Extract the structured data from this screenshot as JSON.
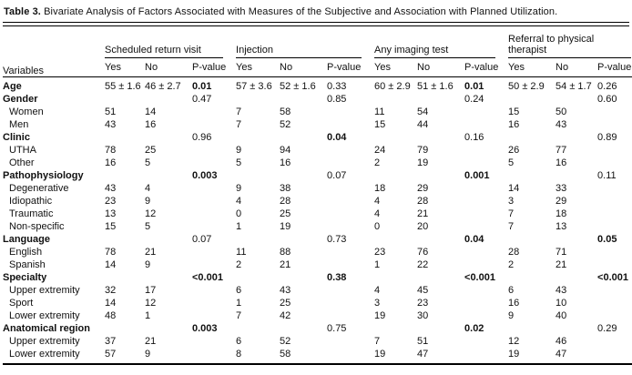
{
  "title": {
    "label": "Table 3.",
    "text": "Bivariate Analysis of Factors Associated with Measures of the Subjective and Association with Planned Utilization."
  },
  "table": {
    "variables_header": "Variables",
    "groups": [
      {
        "label": "Scheduled return visit"
      },
      {
        "label": "Injection"
      },
      {
        "label": "Any imaging test"
      },
      {
        "label": "Referral to physical therapist"
      }
    ],
    "sub_headers": [
      "Yes",
      "No",
      "P-value"
    ],
    "rows": [
      {
        "label": "Age",
        "category": true,
        "cells": [
          "55 ± 1.6",
          "46 ± 2.7",
          "0.01",
          "57 ± 3.6",
          "52 ± 1.6",
          "0.33",
          "60 ± 2.9",
          "51 ± 1.6",
          "0.01",
          "50 ± 2.9",
          "54 ± 1.7",
          "0.26"
        ],
        "bold_cells": [
          2,
          8
        ]
      },
      {
        "label": "Gender",
        "category": true,
        "cells": [
          "",
          "",
          "0.47",
          "",
          "",
          "0.85",
          "",
          "",
          "0.24",
          "",
          "",
          "0.60"
        ],
        "bold_cells": []
      },
      {
        "label": "Women",
        "category": false,
        "cells": [
          "51",
          "14",
          "",
          "7",
          "58",
          "",
          "11",
          "54",
          "",
          "15",
          "50",
          ""
        ],
        "bold_cells": []
      },
      {
        "label": "Men",
        "category": false,
        "cells": [
          "43",
          "16",
          "",
          "7",
          "52",
          "",
          "15",
          "44",
          "",
          "16",
          "43",
          ""
        ],
        "bold_cells": []
      },
      {
        "label": "Clinic",
        "category": true,
        "cells": [
          "",
          "",
          "0.96",
          "",
          "",
          "0.04",
          "",
          "",
          "0.16",
          "",
          "",
          "0.89"
        ],
        "bold_cells": [
          5
        ]
      },
      {
        "label": "UTHA",
        "category": false,
        "cells": [
          "78",
          "25",
          "",
          "9",
          "94",
          "",
          "24",
          "79",
          "",
          "26",
          "77",
          ""
        ],
        "bold_cells": []
      },
      {
        "label": "Other",
        "category": false,
        "cells": [
          "16",
          "5",
          "",
          "5",
          "16",
          "",
          "2",
          "19",
          "",
          "5",
          "16",
          ""
        ],
        "bold_cells": []
      },
      {
        "label": "Pathophysiology",
        "category": true,
        "cells": [
          "",
          "",
          "0.003",
          "",
          "",
          "0.07",
          "",
          "",
          "0.001",
          "",
          "",
          "0.11"
        ],
        "bold_cells": [
          2,
          8
        ]
      },
      {
        "label": "Degenerative",
        "category": false,
        "cells": [
          "43",
          "4",
          "",
          "9",
          "38",
          "",
          "18",
          "29",
          "",
          "14",
          "33",
          ""
        ],
        "bold_cells": []
      },
      {
        "label": "Idiopathic",
        "category": false,
        "cells": [
          "23",
          "9",
          "",
          "4",
          "28",
          "",
          "4",
          "28",
          "",
          "3",
          "29",
          ""
        ],
        "bold_cells": []
      },
      {
        "label": "Traumatic",
        "category": false,
        "cells": [
          "13",
          "12",
          "",
          "0",
          "25",
          "",
          "4",
          "21",
          "",
          "7",
          "18",
          ""
        ],
        "bold_cells": []
      },
      {
        "label": "Non-specific",
        "category": false,
        "cells": [
          "15",
          "5",
          "",
          "1",
          "19",
          "",
          "0",
          "20",
          "",
          "7",
          "13",
          ""
        ],
        "bold_cells": []
      },
      {
        "label": "Language",
        "category": true,
        "cells": [
          "",
          "",
          "0.07",
          "",
          "",
          "0.73",
          "",
          "",
          "0.04",
          "",
          "",
          "0.05"
        ],
        "bold_cells": [
          8,
          11
        ]
      },
      {
        "label": "English",
        "category": false,
        "cells": [
          "78",
          "21",
          "",
          "11",
          "88",
          "",
          "23",
          "76",
          "",
          "28",
          "71",
          ""
        ],
        "bold_cells": []
      },
      {
        "label": "Spanish",
        "category": false,
        "cells": [
          "14",
          "9",
          "",
          "2",
          "21",
          "",
          "1",
          "22",
          "",
          "2",
          "21",
          ""
        ],
        "bold_cells": []
      },
      {
        "label": "Specialty",
        "category": true,
        "cells": [
          "",
          "",
          "<0.001",
          "",
          "",
          "0.38",
          "",
          "",
          "<0.001",
          "",
          "",
          "<0.001"
        ],
        "bold_cells": [
          2,
          5,
          8,
          11
        ]
      },
      {
        "label": "Upper extremity",
        "category": false,
        "cells": [
          "32",
          "17",
          "",
          "6",
          "43",
          "",
          "4",
          "45",
          "",
          "6",
          "43",
          ""
        ],
        "bold_cells": []
      },
      {
        "label": "Sport",
        "category": false,
        "cells": [
          "14",
          "12",
          "",
          "1",
          "25",
          "",
          "3",
          "23",
          "",
          "16",
          "10",
          ""
        ],
        "bold_cells": []
      },
      {
        "label": "Lower extremity",
        "category": false,
        "cells": [
          "48",
          "1",
          "",
          "7",
          "42",
          "",
          "19",
          "30",
          "",
          "9",
          "40",
          ""
        ],
        "bold_cells": []
      },
      {
        "label": "Anatomical region",
        "category": true,
        "cells": [
          "",
          "",
          "0.003",
          "",
          "",
          "0.75",
          "",
          "",
          "0.02",
          "",
          "",
          "0.29"
        ],
        "bold_cells": [
          2,
          8
        ]
      },
      {
        "label": "Upper extremity",
        "category": false,
        "cells": [
          "37",
          "21",
          "",
          "6",
          "52",
          "",
          "7",
          "51",
          "",
          "12",
          "46",
          ""
        ],
        "bold_cells": []
      },
      {
        "label": "Lower extremity",
        "category": false,
        "cells": [
          "57",
          "9",
          "",
          "8",
          "58",
          "",
          "19",
          "47",
          "",
          "19",
          "47",
          ""
        ],
        "bold_cells": []
      }
    ]
  }
}
